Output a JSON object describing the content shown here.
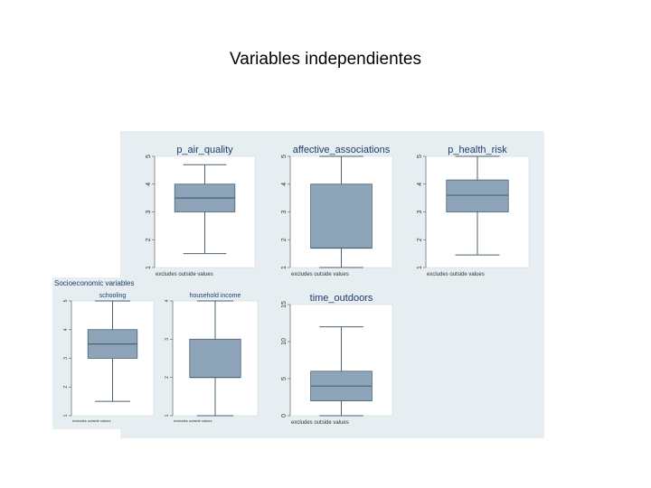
{
  "slide_title": "Variables independientes",
  "colors": {
    "panel_bg": "#e7eef1",
    "plot_bg": "#ffffff",
    "box_fill": "#8ea4b8",
    "box_stroke": "#4a6272",
    "title": "#1e3b6e"
  },
  "inset_title": "Socioeconomic variables",
  "chart_data": [
    {
      "type": "box",
      "title": "p_air_quality",
      "ylim": [
        1,
        5
      ],
      "yticks": [
        "1",
        "2",
        "3",
        "4",
        "5"
      ],
      "box": {
        "whisker_low": 1.5,
        "q1": 3.0,
        "median": 3.5,
        "q3": 4.0,
        "whisker_high": 4.7
      },
      "note": "excludes outside values"
    },
    {
      "type": "box",
      "title": "affective_associations",
      "ylim": [
        1,
        5
      ],
      "yticks": [
        "1",
        "2",
        "3",
        "4",
        "5"
      ],
      "box": {
        "whisker_low": 1.0,
        "q1": 1.7,
        "median": 1.7,
        "q3": 4.0,
        "whisker_high": 5.0
      },
      "note": "excludes outside values"
    },
    {
      "type": "box",
      "title": "p_health_risk",
      "ylim": [
        1,
        5
      ],
      "yticks": [
        "1",
        "2",
        "3",
        "4",
        "5"
      ],
      "box": {
        "whisker_low": 1.45,
        "q1": 3.0,
        "median": 3.6,
        "q3": 4.15,
        "whisker_high": 5.0
      },
      "note": "excludes outside values"
    },
    {
      "type": "box",
      "title": "schooling",
      "ylim": [
        1,
        5
      ],
      "yticks": [
        "1",
        "2",
        "3",
        "4",
        "5"
      ],
      "box": {
        "whisker_low": 1.5,
        "q1": 3.0,
        "median": 3.5,
        "q3": 4.0,
        "whisker_high": 5.0
      },
      "note": "excludes outside values"
    },
    {
      "type": "box",
      "title": "household income",
      "ylim": [
        1,
        4
      ],
      "yticks": [
        "1",
        "2",
        "3",
        "4"
      ],
      "box": {
        "whisker_low": 1.0,
        "q1": 2.0,
        "median": 2.0,
        "q3": 3.0,
        "whisker_high": 4.0
      },
      "note": "excludes outside values"
    },
    {
      "type": "box",
      "title": "time_outdoors",
      "ylim": [
        0,
        15
      ],
      "yticks": [
        "0",
        "5",
        "10",
        "15"
      ],
      "box": {
        "whisker_low": 0.0,
        "q1": 2.0,
        "median": 4.0,
        "q3": 6.0,
        "whisker_high": 12.0
      },
      "note": "excludes outside values"
    }
  ]
}
